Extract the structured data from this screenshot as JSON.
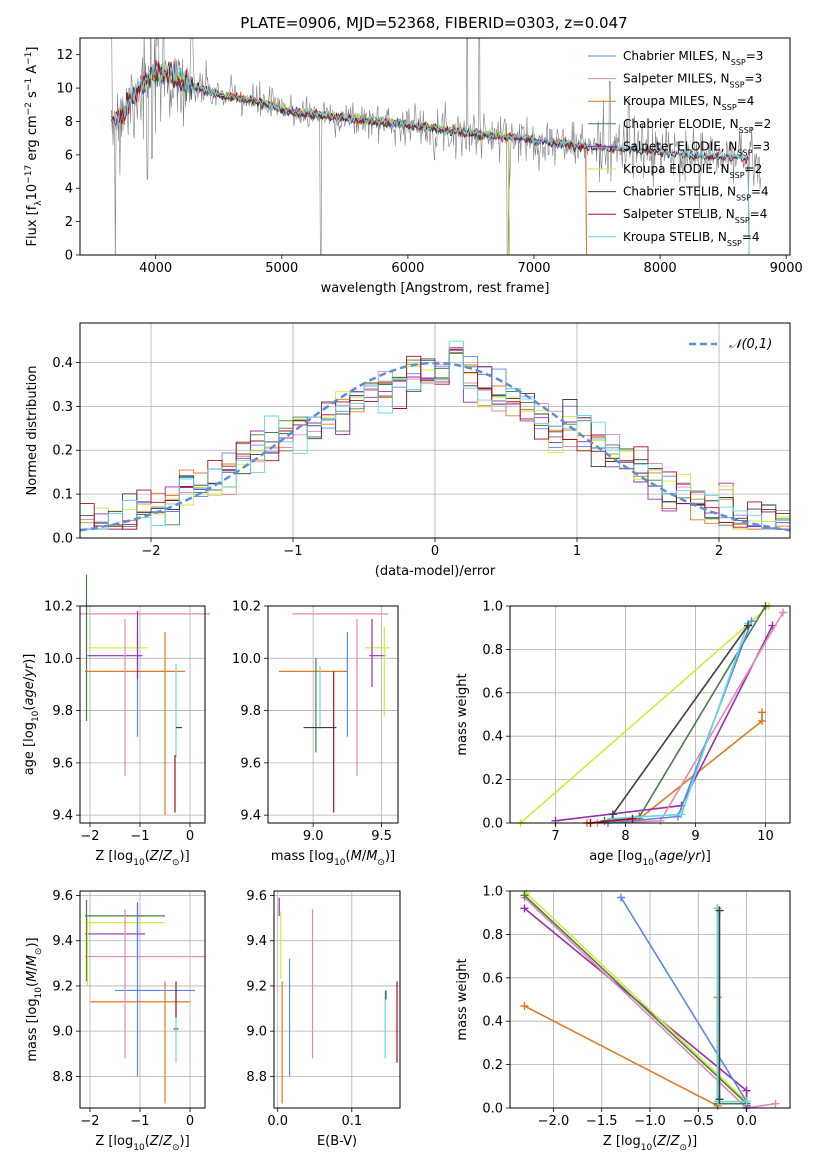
{
  "figure": {
    "title": "PLATE=0906, MJD=52368, FIBERID=0303, z=0.047",
    "colors": {
      "chabrier_miles": "#5b87e6",
      "salpeter_miles": "#e589b6",
      "kroupa_miles": "#e07b20",
      "chabrier_elodie": "#4a7d4a",
      "salpeter_elodie": "#9a2fb0",
      "kroupa_elodie": "#d2ea3a",
      "chabrier_stelib": "#3f3f3f",
      "salpeter_stelib": "#a80f1f",
      "kroupa_stelib": "#66d7e6",
      "spectrum": "#808080",
      "normal": "#5b8fd8"
    }
  },
  "chart_data": [
    {
      "id": "spectrum",
      "type": "line",
      "xlabel": "wavelength [Angstrom, rest frame]",
      "ylabel": "Flux [f_λ10^-17 erg cm^-2 s^-1 A^-1]",
      "xlim": [
        3400,
        9030
      ],
      "ylim": [
        0,
        13
      ],
      "xticks": [
        4000,
        5000,
        6000,
        7000,
        8000,
        9000
      ],
      "yticks": [
        0,
        2,
        4,
        6,
        8,
        10,
        12
      ],
      "legend_position": "top-right",
      "series": [
        {
          "name": "Chabrier MILES",
          "nssp": "3",
          "color": "#5b87e6",
          "x": [
            3650,
            3900,
            4100,
            4400,
            4860,
            5200,
            5800,
            6500,
            7000,
            7410
          ]
        },
        {
          "name": "Salpeter MILES",
          "nssp": "3",
          "color": "#e589b6",
          "x": [
            3650,
            3900,
            4100,
            4400,
            4860,
            5200,
            5800,
            6500,
            7000,
            7410
          ]
        },
        {
          "name": "Kroupa MILES",
          "nssp": "4",
          "color": "#e07b20",
          "x": [
            3650,
            3900,
            4100,
            4400,
            4860,
            5200,
            5800,
            6500,
            7000,
            7410
          ]
        },
        {
          "name": "Chabrier ELODIE",
          "nssp": "2",
          "color": "#4a7d4a",
          "x": [
            3900,
            4100,
            4400,
            4860,
            5200,
            5800,
            6500,
            6800
          ]
        },
        {
          "name": "Salpeter ELODIE",
          "nssp": "3",
          "color": "#9a2fb0",
          "x": [
            3900,
            4100,
            4400,
            4860,
            5200,
            5800,
            6500,
            6800
          ]
        },
        {
          "name": "Kroupa ELODIE",
          "nssp": "2",
          "color": "#d2ea3a",
          "x": [
            3900,
            4100,
            4400,
            4860,
            5200,
            5800,
            6500,
            6800
          ]
        },
        {
          "name": "Chabrier STELIB",
          "nssp": "4",
          "color": "#3f3f3f",
          "x": [
            3650,
            4000,
            4400,
            4860,
            5500,
            6500,
            7500,
            8000,
            8500,
            8700
          ]
        },
        {
          "name": "Salpeter STELIB",
          "nssp": "4",
          "color": "#a80f1f",
          "x": [
            3650,
            4000,
            4400,
            4860,
            5500,
            6500,
            7500,
            8000,
            8500,
            8700
          ]
        },
        {
          "name": "Kroupa STELIB",
          "nssp": "4",
          "color": "#66d7e6",
          "x": [
            3650,
            4000,
            4400,
            4860,
            5500,
            6500,
            7500,
            8000,
            8500,
            8700
          ]
        }
      ],
      "model_curve": {
        "x": [
          3650,
          3700,
          3800,
          3900,
          4000,
          4100,
          4300,
          4500,
          4860,
          5000,
          5500,
          6000,
          6500,
          7000,
          7410,
          7800,
          8200,
          8700
        ],
        "y": [
          7.9,
          8.3,
          9.3,
          10.3,
          11.0,
          10.8,
          10.1,
          9.6,
          9.1,
          8.7,
          8.2,
          7.8,
          7.3,
          6.9,
          6.5,
          6.3,
          6.0,
          5.8
        ]
      }
    },
    {
      "id": "residuals",
      "type": "histogram",
      "xlabel": "(data-model)/error",
      "ylabel": "Normed distribution",
      "xlim": [
        -2.5,
        2.5
      ],
      "ylim": [
        0,
        0.49
      ],
      "xticks": [
        -2,
        -1,
        0,
        1,
        2
      ],
      "yticks": [
        0.0,
        0.1,
        0.2,
        0.3,
        0.4
      ],
      "grid": true,
      "bin_width": 0.1,
      "legend_position": "top-right",
      "legend": "𝒩(0,1)",
      "normal_mean": 0,
      "normal_sigma": 1
    },
    {
      "id": "age_vs_Z",
      "type": "errorbar",
      "xlabel": "Z [log10(Z/Z⊙)]",
      "ylabel": "age  [log10(age/yr)]",
      "xlim": [
        -2.2,
        0.3
      ],
      "ylim": [
        9.37,
        10.2
      ],
      "xticks": [
        -2,
        -1,
        0
      ],
      "yticks": [
        9.4,
        9.6,
        9.8,
        10.0,
        10.2
      ],
      "grid": true,
      "points": [
        {
          "color": "#e589b6",
          "x": -0.9,
          "xerr": 1.3,
          "y": 10.17,
          "yerr": 0
        },
        {
          "color": "#d2ea3a",
          "x": -1.45,
          "xerr": 0.6,
          "y": 10.04,
          "yerr": 0
        },
        {
          "color": "#4a7d4a",
          "x": -2.07,
          "xerr": 0,
          "y": 10.04,
          "yerr": 0.28
        },
        {
          "color": "#9a2fb0",
          "x": -1.5,
          "xerr": 0.55,
          "y": 10.01,
          "yerr": 0
        },
        {
          "color": "#e07b20",
          "x": -1.1,
          "xerr": 1.0,
          "y": 9.95,
          "yerr": 0
        },
        {
          "color": "#5b87e6",
          "x": -1.05,
          "xerr": 0,
          "y": 9.9,
          "yerr": 0.2
        },
        {
          "color": "#e589b6",
          "x": -1.3,
          "xerr": 0,
          "y": 9.85,
          "yerr": 0.3
        },
        {
          "color": "#9a2fb0",
          "x": -1.05,
          "xerr": 0,
          "y": 10.05,
          "yerr": 0.13
        },
        {
          "color": "#e07b20",
          "x": -0.5,
          "xerr": 0,
          "y": 9.75,
          "yerr": 0.35
        },
        {
          "color": "#66d7e6",
          "x": -0.28,
          "xerr": 0,
          "y": 9.8,
          "yerr": 0.18
        },
        {
          "color": "#3f3f3f",
          "x": -0.22,
          "xerr": 0.06,
          "y": 9.735,
          "yerr": 0
        },
        {
          "color": "#a80f1f",
          "x": -0.3,
          "xerr": 0,
          "y": 9.52,
          "yerr": 0.11
        }
      ]
    },
    {
      "id": "age_vs_mass",
      "type": "errorbar",
      "xlabel": "mass [log10(M/M⊙)]",
      "ylabel": "",
      "xlim": [
        8.67,
        9.62
      ],
      "ylim": [
        9.37,
        10.2
      ],
      "xticks": [
        9.0,
        9.5
      ],
      "yticks": [
        9.4,
        9.6,
        9.8,
        10.0,
        10.2
      ],
      "grid": true,
      "points": [
        {
          "color": "#e589b6",
          "x": 9.2,
          "xerr": 0.35,
          "y": 10.17,
          "yerr": 0
        },
        {
          "color": "#d2ea3a",
          "x": 9.47,
          "xerr": 0.09,
          "y": 10.04,
          "yerr": 0
        },
        {
          "color": "#9a2fb0",
          "x": 9.47,
          "xerr": 0.06,
          "y": 10.01,
          "yerr": 0
        },
        {
          "color": "#e07b20",
          "x": 9.0,
          "xerr": 0.25,
          "y": 9.95,
          "yerr": 0
        },
        {
          "color": "#4a7d4a",
          "x": 9.02,
          "xerr": 0,
          "y": 9.82,
          "yerr": 0.18
        },
        {
          "color": "#66d7e6",
          "x": 9.05,
          "xerr": 0,
          "y": 9.85,
          "yerr": 0.12
        },
        {
          "color": "#3f3f3f",
          "x": 9.05,
          "xerr": 0.12,
          "y": 9.735,
          "yerr": 0
        },
        {
          "color": "#a80f1f",
          "x": 9.15,
          "xerr": 0,
          "y": 9.68,
          "yerr": 0.27
        },
        {
          "color": "#e589b6",
          "x": 9.32,
          "xerr": 0,
          "y": 9.85,
          "yerr": 0.3
        },
        {
          "color": "#5b87e6",
          "x": 9.25,
          "xerr": 0,
          "y": 9.9,
          "yerr": 0.2
        },
        {
          "color": "#9a2fb0",
          "x": 9.43,
          "xerr": 0,
          "y": 10.02,
          "yerr": 0.13
        },
        {
          "color": "#d2ea3a",
          "x": 9.52,
          "xerr": 0,
          "y": 9.95,
          "yerr": 0.17
        }
      ]
    },
    {
      "id": "massweight_vs_age",
      "type": "line",
      "xlabel": "age  [log10(age/yr)]",
      "ylabel": "mass weight",
      "xlim": [
        6.35,
        10.35
      ],
      "ylim": [
        0,
        1
      ],
      "xticks": [
        7,
        8,
        9,
        10
      ],
      "yticks": [
        0.0,
        0.2,
        0.4,
        0.6,
        0.8,
        1.0
      ],
      "grid": true,
      "series": [
        {
          "color": "#d2ea3a",
          "x": [
            6.5,
            10.05
          ],
          "y": [
            0.0,
            1.0
          ]
        },
        {
          "color": "#e07b20",
          "x": [
            7.45,
            8.2,
            9.95,
            9.95
          ],
          "y": [
            0.0,
            0.02,
            0.47,
            0.51
          ]
        },
        {
          "color": "#9a2fb0",
          "x": [
            7.0,
            8.8,
            10.1
          ],
          "y": [
            0.01,
            0.08,
            0.91
          ]
        },
        {
          "color": "#e589b6",
          "x": [
            7.6,
            8.5,
            10.25
          ],
          "y": [
            0.0,
            0.01,
            0.97
          ]
        },
        {
          "color": "#4a7d4a",
          "x": [
            7.7,
            8.2,
            10.0
          ],
          "y": [
            0.01,
            0.03,
            1.0
          ]
        },
        {
          "color": "#5b87e6",
          "x": [
            7.75,
            8.75,
            9.8
          ],
          "y": [
            0.0,
            0.03,
            0.93
          ]
        },
        {
          "color": "#66d7e6",
          "x": [
            7.8,
            8.8,
            9.75
          ],
          "y": [
            0.02,
            0.04,
            0.92
          ]
        },
        {
          "color": "#3f3f3f",
          "x": [
            7.82,
            9.75
          ],
          "y": [
            0.04,
            0.91
          ]
        },
        {
          "color": "#a80f1f",
          "x": [
            7.5,
            8.1
          ],
          "y": [
            0.0,
            0.02
          ]
        }
      ]
    },
    {
      "id": "mass_vs_Z",
      "type": "errorbar",
      "xlabel": "Z [log10(Z/Z⊙)]",
      "ylabel": "mass [log10(M/M⊙)]",
      "xlim": [
        -2.2,
        0.3
      ],
      "ylim": [
        8.66,
        9.62
      ],
      "xticks": [
        -2,
        -1,
        0
      ],
      "yticks": [
        8.8,
        9.0,
        9.2,
        9.4,
        9.6
      ],
      "grid": true,
      "points": [
        {
          "color": "#4a7d4a",
          "x": -1.3,
          "xerr": 0.8,
          "y": 9.51,
          "yerr": 0
        },
        {
          "color": "#d2ea3a",
          "x": -1.3,
          "xerr": 0.8,
          "y": 9.48,
          "yerr": 0
        },
        {
          "color": "#9a2fb0",
          "x": -1.5,
          "xerr": 0.6,
          "y": 9.43,
          "yerr": 0
        },
        {
          "color": "#e589b6",
          "x": -0.9,
          "xerr": 1.2,
          "y": 9.33,
          "yerr": 0
        },
        {
          "color": "#5b87e6",
          "x": -0.7,
          "xerr": 0.8,
          "y": 9.18,
          "yerr": 0
        },
        {
          "color": "#e07b20",
          "x": -1.0,
          "xerr": 1.0,
          "y": 9.13,
          "yerr": 0
        },
        {
          "color": "#3f3f3f",
          "x": -0.28,
          "xerr": 0.05,
          "y": 9.01,
          "yerr": 0
        },
        {
          "color": "#4a7d4a",
          "x": -2.07,
          "xerr": 0,
          "y": 9.4,
          "yerr": 0.18
        },
        {
          "color": "#d2ea3a",
          "x": -2.05,
          "xerr": 0,
          "y": 9.35,
          "yerr": 0.15
        },
        {
          "color": "#9a2fb0",
          "x": -1.05,
          "xerr": 0,
          "y": 9.44,
          "yerr": 0.13
        },
        {
          "color": "#5b87e6",
          "x": -1.05,
          "xerr": 0,
          "y": 9.18,
          "yerr": 0.38
        },
        {
          "color": "#e589b6",
          "x": -1.3,
          "xerr": 0,
          "y": 9.21,
          "yerr": 0.33
        },
        {
          "color": "#e07b20",
          "x": -0.5,
          "xerr": 0,
          "y": 8.95,
          "yerr": 0.27
        },
        {
          "color": "#66d7e6",
          "x": -0.28,
          "xerr": 0,
          "y": 9.02,
          "yerr": 0.16
        },
        {
          "color": "#a80f1f",
          "x": -0.28,
          "xerr": 0,
          "y": 9.14,
          "yerr": 0.08
        }
      ]
    },
    {
      "id": "mass_vs_ebv",
      "type": "errorbar",
      "xlabel": "E(B-V)",
      "ylabel": "",
      "xlim": [
        -0.005,
        0.165
      ],
      "ylim": [
        8.66,
        9.62
      ],
      "xticks": [
        0.0,
        0.1
      ],
      "yticks": [
        8.8,
        9.0,
        9.2,
        9.4,
        9.6
      ],
      "grid": true,
      "points": [
        {
          "color": "#9a2fb0",
          "x": 0.002,
          "xerr": 0,
          "y": 9.55,
          "yerr": 0.04
        },
        {
          "color": "#d2ea3a",
          "x": 0.004,
          "xerr": 0,
          "y": 9.38,
          "yerr": 0.15
        },
        {
          "color": "#e07b20",
          "x": 0.006,
          "xerr": 0,
          "y": 8.95,
          "yerr": 0.27
        },
        {
          "color": "#5b87e6",
          "x": 0.016,
          "xerr": 0,
          "y": 9.06,
          "yerr": 0.26
        },
        {
          "color": "#e589b6",
          "x": 0.047,
          "xerr": 0,
          "y": 9.21,
          "yerr": 0.33
        },
        {
          "color": "#66d7e6",
          "x": 0.145,
          "xerr": 0,
          "y": 9.03,
          "yerr": 0.15
        },
        {
          "color": "#3f3f3f",
          "x": 0.146,
          "xerr": 0,
          "y": 9.16,
          "yerr": 0.02
        },
        {
          "color": "#a80f1f",
          "x": 0.161,
          "xerr": 0,
          "y": 9.04,
          "yerr": 0.18
        }
      ]
    },
    {
      "id": "massweight_vs_Z",
      "type": "line",
      "xlabel": "Z [log10(Z/Z⊙)]",
      "ylabel": "mass weight",
      "xlim": [
        -2.45,
        0.45
      ],
      "ylim": [
        0,
        1
      ],
      "xticks": [
        -2.0,
        -1.5,
        -1.0,
        -0.5,
        0.0
      ],
      "yticks": [
        0.0,
        0.2,
        0.4,
        0.6,
        0.8,
        1.0
      ],
      "grid": true,
      "series": [
        {
          "color": "#e07b20",
          "x": [
            -2.3,
            -0.3,
            -0.3
          ],
          "y": [
            0.47,
            0.01,
            0.51
          ]
        },
        {
          "color": "#9a2fb0",
          "x": [
            -2.3,
            0.0,
            0.0
          ],
          "y": [
            0.92,
            0.08,
            0.01
          ]
        },
        {
          "color": "#d2ea3a",
          "x": [
            -2.28,
            0.0
          ],
          "y": [
            0.99,
            0.03
          ]
        },
        {
          "color": "#e589b6",
          "x": [
            -2.3,
            0.0,
            0.3
          ],
          "y": [
            0.97,
            0.0,
            0.02
          ]
        },
        {
          "color": "#5b87e6",
          "x": [
            -1.3,
            0.0,
            0.0
          ],
          "y": [
            0.97,
            0.03,
            0.0
          ]
        },
        {
          "color": "#4a7d4a",
          "x": [
            -2.3,
            0.0,
            -0.3,
            -0.3
          ],
          "y": [
            0.98,
            0.02,
            0.02,
            0.92
          ]
        },
        {
          "color": "#66d7e6",
          "x": [
            -0.3,
            -0.3,
            0.0
          ],
          "y": [
            0.92,
            0.03,
            0.03
          ]
        },
        {
          "color": "#3f3f3f",
          "x": [
            -0.28,
            -0.28
          ],
          "y": [
            0.04,
            0.91
          ]
        }
      ]
    }
  ]
}
